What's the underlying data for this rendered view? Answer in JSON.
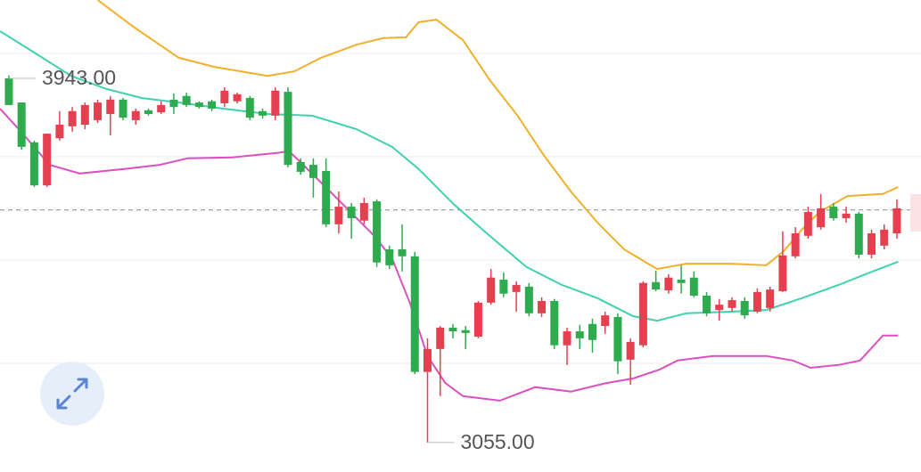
{
  "chart_data": {
    "type": "candlestick",
    "xlim": [
      -0.7,
      71.9
    ],
    "ylim": [
      2983,
      4134
    ],
    "grid_values": [
      4004,
      3752,
      3500,
      3248
    ],
    "reference_line": 3622,
    "up_color": "#e5404f",
    "down_color": "#2eab4e",
    "open": [
      3943,
      3884,
      3787,
      3682,
      3797,
      3826,
      3830,
      3841,
      3856,
      3891,
      3841,
      3865,
      3860,
      3891,
      3900,
      3884,
      3887,
      3882,
      3887,
      3895,
      3863,
      3852,
      3910,
      3739,
      3732,
      3717,
      3587,
      3630,
      3596,
      3643,
      3526,
      3526,
      3509,
      3227,
      3283,
      3335,
      3329,
      3313,
      3396,
      3452,
      3422,
      3435,
      3370,
      3400,
      3292,
      3326,
      3344,
      3339,
      3361,
      3257,
      3292,
      3446,
      3426,
      3452,
      3457,
      3413,
      3378,
      3383,
      3400,
      3374,
      3383,
      3424,
      3509,
      3559,
      3580,
      3630,
      3602,
      3613,
      3513,
      3535,
      3565
    ],
    "high": [
      3950,
      3884,
      3791,
      3808,
      3863,
      3873,
      3884,
      3891,
      3900,
      3895,
      3869,
      3869,
      3887,
      3906,
      3908,
      3887,
      3891,
      3921,
      3908,
      3900,
      3869,
      3921,
      3921,
      3748,
      3748,
      3748,
      3667,
      3639,
      3652,
      3648,
      3535,
      3587,
      3520,
      3309,
      3339,
      3344,
      3339,
      3400,
      3478,
      3470,
      3448,
      3444,
      3409,
      3405,
      3335,
      3342,
      3357,
      3374,
      3370,
      3309,
      3448,
      3474,
      3465,
      3487,
      3472,
      3422,
      3405,
      3409,
      3409,
      3431,
      3435,
      3570,
      3580,
      3630,
      3661,
      3639,
      3630,
      3617,
      3574,
      3587,
      3648
    ],
    "low": [
      3878,
      3769,
      3678,
      3678,
      3791,
      3813,
      3819,
      3834,
      3804,
      3841,
      3830,
      3852,
      3856,
      3856,
      3873,
      3869,
      3863,
      3873,
      3882,
      3841,
      3845,
      3841,
      3726,
      3708,
      3652,
      3580,
      3565,
      3552,
      3587,
      3483,
      3478,
      3472,
      3222,
      3055,
      3168,
      3309,
      3283,
      3309,
      3391,
      3409,
      3374,
      3363,
      3361,
      3283,
      3244,
      3283,
      3274,
      3320,
      3222,
      3196,
      3287,
      3424,
      3418,
      3418,
      3409,
      3363,
      3352,
      3374,
      3357,
      3370,
      3374,
      3422,
      3504,
      3552,
      3574,
      3596,
      3591,
      3504,
      3504,
      3526,
      3552
    ],
    "close": [
      3878,
      3776,
      3682,
      3808,
      3830,
      3863,
      3878,
      3884,
      3891,
      3847,
      3863,
      3856,
      3878,
      3873,
      3878,
      3873,
      3869,
      3913,
      3904,
      3847,
      3852,
      3913,
      3732,
      3715,
      3700,
      3587,
      3630,
      3602,
      3639,
      3494,
      3487,
      3509,
      3227,
      3283,
      3335,
      3326,
      3322,
      3396,
      3457,
      3418,
      3439,
      3370,
      3400,
      3292,
      3326,
      3309,
      3305,
      3365,
      3253,
      3300,
      3444,
      3428,
      3457,
      3444,
      3413,
      3370,
      3391,
      3402,
      3365,
      3422,
      3428,
      3511,
      3565,
      3617,
      3626,
      3602,
      3613,
      3513,
      3565,
      3574,
      3626
    ],
    "bands": [
      {
        "color": "#f0b02a",
        "x": [
          7.0,
          9.8,
          13.4,
          16.2,
          20.4,
          22.5,
          24.6,
          27.4,
          29.5,
          31.3,
          32.3,
          33.7,
          35.8,
          37.9,
          40.1,
          42.2,
          44.3,
          46.4,
          48.5,
          51.1,
          53.4,
          56.9,
          59.7,
          61.1,
          62.5,
          63.9,
          66.1,
          68.9,
          70.1
        ],
        "values": [
          4134,
          4069,
          3993,
          3971,
          3949,
          3960,
          3993,
          4025,
          4041,
          4043,
          4080,
          4086,
          4036,
          3939,
          3852,
          3754,
          3667,
          3591,
          3526,
          3478,
          3491,
          3491,
          3487,
          3522,
          3574,
          3617,
          3656,
          3661,
          3678
        ]
      },
      {
        "color": "#3fd1b0",
        "x": [
          -0.7,
          2.1,
          4.9,
          7.7,
          10.5,
          13.4,
          16.9,
          20.4,
          23.9,
          27.4,
          30.2,
          32.3,
          35.1,
          37.9,
          40.8,
          43.6,
          46.4,
          49.2,
          51.1,
          53.4,
          56.9,
          59.7,
          62.5,
          65.4,
          67.5,
          70.1
        ],
        "values": [
          4058,
          4004,
          3949,
          3917,
          3895,
          3884,
          3869,
          3856,
          3852,
          3819,
          3776,
          3722,
          3635,
          3559,
          3483,
          3439,
          3407,
          3363,
          3352,
          3370,
          3374,
          3378,
          3407,
          3439,
          3465,
          3496
        ]
      },
      {
        "color": "#dc4fc0",
        "x": [
          -0.7,
          1.1,
          3.2,
          5.6,
          9.1,
          11.9,
          14.1,
          17.6,
          21.1,
          22.1,
          23.2,
          26.0,
          28.8,
          30.2,
          31.6,
          33.0,
          34.4,
          35.8,
          38.7,
          41.5,
          44.3,
          47.1,
          49.2,
          51.3,
          52.7,
          55.5,
          59.7,
          61.8,
          63.2,
          65.4,
          67.1,
          68.9,
          70.1
        ],
        "values": [
          3869,
          3808,
          3732,
          3711,
          3722,
          3732,
          3748,
          3750,
          3761,
          3765,
          3732,
          3646,
          3559,
          3504,
          3396,
          3266,
          3200,
          3168,
          3157,
          3190,
          3179,
          3200,
          3211,
          3233,
          3255,
          3266,
          3266,
          3255,
          3237,
          3244,
          3255,
          3316,
          3316
        ]
      }
    ],
    "annotations": [
      {
        "text": "3943.00",
        "value": 3943,
        "x": 0
      },
      {
        "text": "3055.00",
        "value": 3055,
        "x": 33
      }
    ]
  }
}
